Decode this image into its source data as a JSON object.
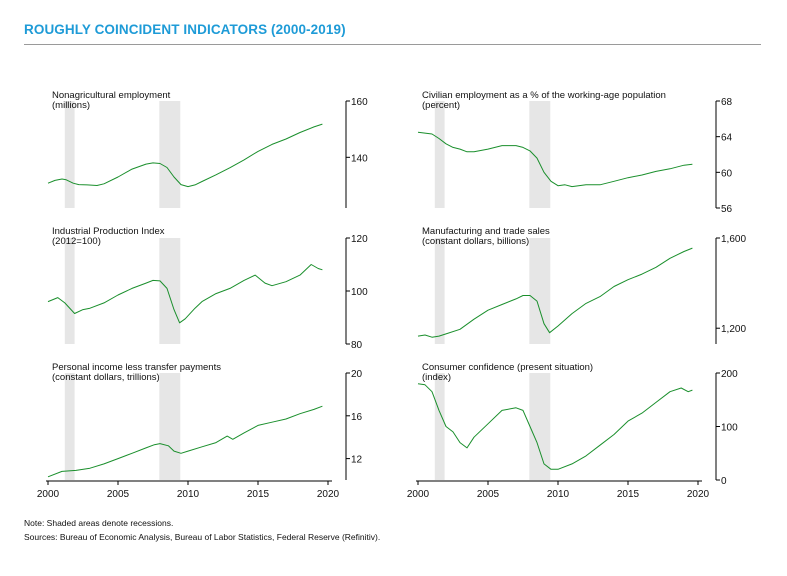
{
  "title": "ROUGHLY COINCIDENT INDICATORS (2000-2019)",
  "notes": {
    "note": "Note: Shaded areas denote recessions.",
    "sources": "Sources: Bureau of Economic Analysis, Bureau of Labor Statistics, Federal Reserve (Refinitiv)."
  },
  "colors": {
    "line": "#1a8f2c",
    "recession": "#e6e6e6",
    "axis": "#000000"
  },
  "chart_data": [
    {
      "type": "line",
      "title": "Nonagricultural employment",
      "subtitle": "(millions)",
      "xlim": [
        2000,
        2020
      ],
      "ylim": [
        122,
        160
      ],
      "yticks": [
        140,
        160
      ],
      "recessions": [
        [
          2001.2,
          2001.9
        ],
        [
          2007.95,
          2009.45
        ]
      ],
      "x": [
        2000,
        2000.5,
        2001,
        2001.3,
        2001.8,
        2002.2,
        2002.8,
        2003.5,
        2004,
        2005,
        2006,
        2007,
        2007.5,
        2008,
        2008.5,
        2009,
        2009.5,
        2010,
        2010.5,
        2011,
        2012,
        2013,
        2014,
        2015,
        2016,
        2017,
        2018,
        2019,
        2019.6
      ],
      "values": [
        130.8,
        131.8,
        132.3,
        132.0,
        130.8,
        130.3,
        130.2,
        130.0,
        130.6,
        133.0,
        135.8,
        137.6,
        138.0,
        137.8,
        136.4,
        133.0,
        130.3,
        129.6,
        130.2,
        131.4,
        133.8,
        136.3,
        139.1,
        142.1,
        144.6,
        146.5,
        148.8,
        150.8,
        151.8
      ]
    },
    {
      "type": "line",
      "title": "Civilian employment as a % of the working-age population",
      "subtitle": "(percent)",
      "xlim": [
        2000,
        2020
      ],
      "ylim": [
        56,
        68
      ],
      "yticks": [
        56,
        60,
        64,
        68
      ],
      "recessions": [
        [
          2001.2,
          2001.9
        ],
        [
          2007.95,
          2009.45
        ]
      ],
      "x": [
        2000,
        2000.5,
        2001,
        2001.5,
        2002,
        2002.5,
        2003,
        2003.5,
        2004,
        2005,
        2006,
        2007,
        2007.5,
        2008,
        2008.5,
        2009,
        2009.5,
        2010,
        2010.5,
        2011,
        2012,
        2013,
        2014,
        2015,
        2016,
        2017,
        2018,
        2019,
        2019.6
      ],
      "values": [
        64.5,
        64.4,
        64.3,
        63.8,
        63.2,
        62.8,
        62.6,
        62.3,
        62.3,
        62.6,
        63.0,
        63.0,
        62.8,
        62.4,
        61.6,
        60.0,
        59.0,
        58.5,
        58.6,
        58.4,
        58.6,
        58.6,
        59.0,
        59.4,
        59.7,
        60.1,
        60.4,
        60.8,
        60.9
      ]
    },
    {
      "type": "line",
      "title": "Industrial Production Index",
      "subtitle": "(2012=100)",
      "xlim": [
        2000,
        2020
      ],
      "ylim": [
        80,
        120
      ],
      "yticks": [
        80,
        100,
        120
      ],
      "recessions": [
        [
          2001.2,
          2001.9
        ],
        [
          2007.95,
          2009.45
        ]
      ],
      "x": [
        2000,
        2000.7,
        2001.2,
        2001.9,
        2002.5,
        2003,
        2004,
        2005,
        2006,
        2007,
        2007.5,
        2008,
        2008.5,
        2009,
        2009.4,
        2009.8,
        2010.5,
        2011,
        2012,
        2013,
        2014,
        2014.8,
        2015.5,
        2016,
        2017,
        2018,
        2018.8,
        2019.3,
        2019.6
      ],
      "values": [
        96,
        97.5,
        95.5,
        91.5,
        93.0,
        93.5,
        95.5,
        98.5,
        101.0,
        103.0,
        104.0,
        103.8,
        101.0,
        93.0,
        88.0,
        89.5,
        93.5,
        96.0,
        99.0,
        101.0,
        104.0,
        106.0,
        103.0,
        102.0,
        103.5,
        106.0,
        110.0,
        108.5,
        108.0
      ]
    },
    {
      "type": "line",
      "title": "Manufacturing and trade sales",
      "subtitle": "(constant dollars, billions)",
      "xlim": [
        2000,
        2020
      ],
      "ylim": [
        1130,
        1600
      ],
      "yticks": [
        1200,
        1600
      ],
      "yticklabels": [
        "1,200",
        "1,600"
      ],
      "recessions": [
        [
          2001.2,
          2001.9
        ],
        [
          2007.95,
          2009.45
        ]
      ],
      "x": [
        2000,
        2000.5,
        2001,
        2001.5,
        2002,
        2003,
        2004,
        2005,
        2006,
        2007,
        2007.5,
        2008,
        2008.5,
        2009,
        2009.4,
        2010,
        2011,
        2012,
        2013,
        2014,
        2015,
        2016,
        2017,
        2018,
        2019,
        2019.6
      ],
      "values": [
        1165,
        1170,
        1160,
        1165,
        1175,
        1195,
        1240,
        1280,
        1305,
        1330,
        1345,
        1345,
        1320,
        1220,
        1180,
        1210,
        1265,
        1310,
        1340,
        1385,
        1415,
        1440,
        1470,
        1510,
        1540,
        1555
      ]
    },
    {
      "type": "line",
      "title": "Personal income less transfer payments",
      "subtitle": "(constant dollars, trillions)",
      "xlim": [
        2000,
        2020
      ],
      "ylim": [
        10,
        20
      ],
      "yticks": [
        12,
        16,
        20
      ],
      "recessions": [
        [
          2001.2,
          2001.9
        ],
        [
          2007.95,
          2009.45
        ]
      ],
      "x": [
        2000,
        2001,
        2002,
        2003,
        2004,
        2005,
        2006,
        2007,
        2007.6,
        2008,
        2008.6,
        2009,
        2009.5,
        2010,
        2011,
        2012,
        2012.8,
        2013.2,
        2014,
        2015,
        2016,
        2017,
        2018,
        2019,
        2019.6
      ],
      "values": [
        10.3,
        10.8,
        10.9,
        11.1,
        11.5,
        12.0,
        12.5,
        13.0,
        13.3,
        13.4,
        13.2,
        12.7,
        12.5,
        12.7,
        13.1,
        13.5,
        14.1,
        13.8,
        14.4,
        15.1,
        15.4,
        15.7,
        16.2,
        16.6,
        16.9
      ]
    },
    {
      "type": "line",
      "title": "Consumer confidence (present situation)",
      "subtitle": "(index)",
      "xlim": [
        2000,
        2020
      ],
      "ylim": [
        0,
        200
      ],
      "yticks": [
        0,
        100,
        200
      ],
      "recessions": [
        [
          2001.2,
          2001.9
        ],
        [
          2007.95,
          2009.45
        ]
      ],
      "x": [
        2000,
        2000.5,
        2001,
        2001.5,
        2002,
        2002.5,
        2003,
        2003.5,
        2004,
        2005,
        2006,
        2007,
        2007.5,
        2008,
        2008.5,
        2009,
        2009.5,
        2010,
        2011,
        2012,
        2013,
        2014,
        2015,
        2016,
        2017,
        2018,
        2018.8,
        2019.3,
        2019.6
      ],
      "values": [
        180,
        178,
        165,
        130,
        100,
        90,
        70,
        60,
        80,
        105,
        130,
        135,
        130,
        100,
        70,
        30,
        20,
        20,
        30,
        45,
        65,
        85,
        110,
        125,
        145,
        165,
        172,
        165,
        168
      ]
    }
  ],
  "xaxis": {
    "ticks": [
      2000,
      2005,
      2010,
      2015,
      2020
    ],
    "labels": [
      "2000",
      "2005",
      "2010",
      "2015",
      "2020"
    ]
  }
}
